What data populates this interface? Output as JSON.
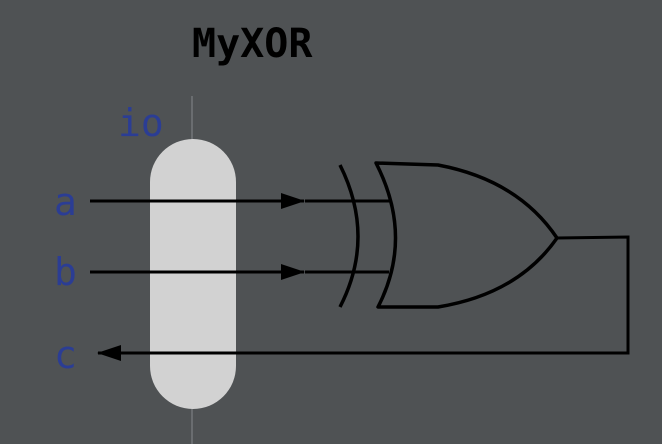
{
  "title": "MyXOR",
  "bundle": {
    "name": "io",
    "color": "#d2d2d2"
  },
  "ports": [
    {
      "name": "a",
      "direction": "input"
    },
    {
      "name": "b",
      "direction": "input"
    },
    {
      "name": "c",
      "direction": "output"
    }
  ],
  "gate": {
    "type": "xor"
  },
  "colors": {
    "background": "#4f5254",
    "label": "#2b3d94",
    "wire": "#000000",
    "title": "#000000"
  }
}
